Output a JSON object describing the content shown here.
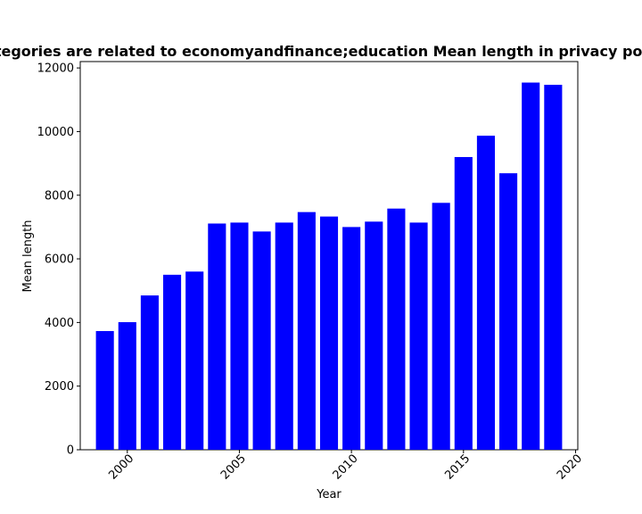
{
  "chart_data": {
    "type": "bar",
    "title": "Categories are related to economyandfinance;education Mean length in privacy policies",
    "xlabel": "Year",
    "ylabel": "Mean length",
    "bar_color": "#0000ff",
    "x": [
      1999,
      2000,
      2001,
      2002,
      2003,
      2004,
      2005,
      2006,
      2007,
      2008,
      2009,
      2010,
      2011,
      2012,
      2013,
      2014,
      2015,
      2016,
      2017,
      2018,
      2019
    ],
    "values": [
      3730,
      4010,
      4850,
      5500,
      5600,
      7110,
      7140,
      6860,
      7140,
      7470,
      7330,
      7000,
      7170,
      7580,
      7140,
      7760,
      9200,
      9870,
      8690,
      11540,
      11470
    ],
    "xlim": [
      1997.9,
      2020.1
    ],
    "ylim": [
      0,
      12200
    ],
    "xticks": [
      2000,
      2005,
      2010,
      2015,
      2020
    ],
    "yticks": [
      0,
      2000,
      4000,
      6000,
      8000,
      10000,
      12000
    ],
    "grid": false,
    "legend": "none"
  }
}
